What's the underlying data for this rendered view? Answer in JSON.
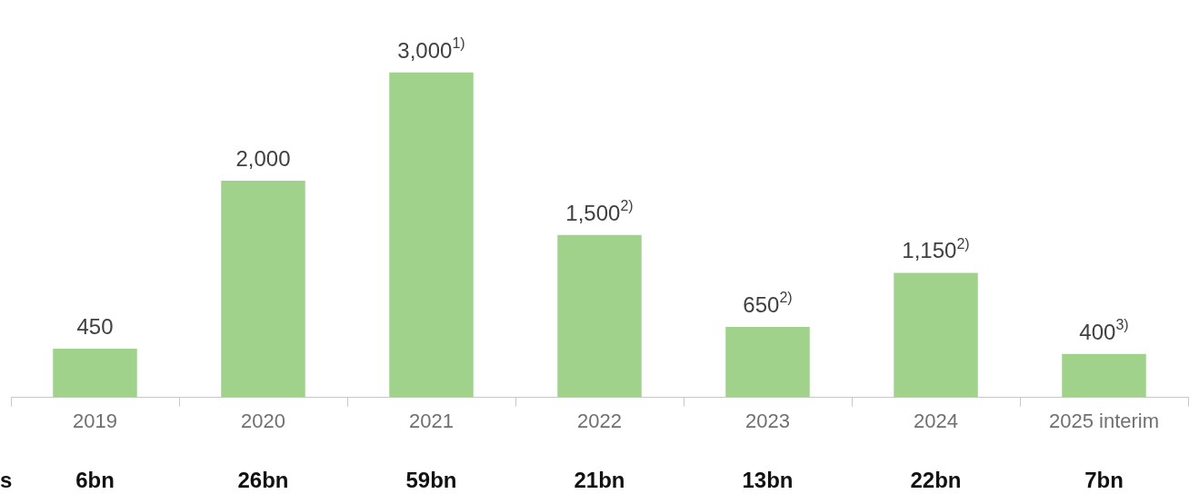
{
  "chart_data": {
    "type": "bar",
    "categories": [
      "2019",
      "2020",
      "2021",
      "2022",
      "2023",
      "2024",
      "2025 interim"
    ],
    "values": [
      450,
      2000,
      3000,
      1500,
      650,
      1150,
      400
    ],
    "color": "#a0d28c",
    "value_labels": [
      "450",
      "2,000",
      "3,000$^{1)}$",
      "1,500$^{2)}$",
      "650$^{2)}$",
      "1,150$^{2)}$",
      "400$^{3)}$"
    ],
    "annotations": [
      "s",
      "6bn",
      "26bn",
      "59bn",
      "21bn",
      "13bn",
      "22bn",
      "7bn"
    ],
    "grid": false,
    "legend": false
  }
}
